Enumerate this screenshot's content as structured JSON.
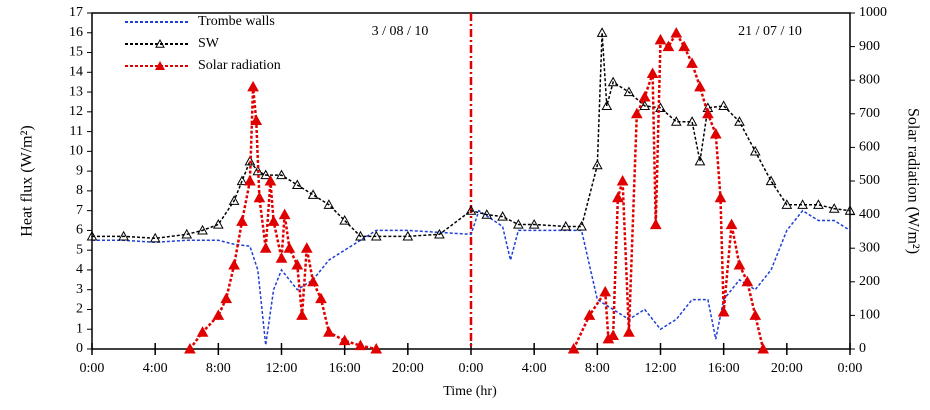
{
  "chart_data": {
    "type": "line",
    "xlabel": "Time (hr)",
    "ylabel": "Heat flux (W/m²)",
    "y2label": "Solar radiation (W/m²)",
    "annotations": [
      "3 / 08 / 10",
      "21 / 07 / 10"
    ],
    "vline": 24,
    "xlim": [
      0,
      48
    ],
    "xticks": [
      {
        "value": 0,
        "label": "0:00"
      },
      {
        "value": 4,
        "label": "4:00"
      },
      {
        "value": 8,
        "label": "8:00"
      },
      {
        "value": 12,
        "label": "12:00"
      },
      {
        "value": 16,
        "label": "16:00"
      },
      {
        "value": 20,
        "label": "20:00"
      },
      {
        "value": 24,
        "label": "0:00"
      },
      {
        "value": 28,
        "label": "4:00"
      },
      {
        "value": 32,
        "label": "8:00"
      },
      {
        "value": 36,
        "label": "12:00"
      },
      {
        "value": 40,
        "label": "16:00"
      },
      {
        "value": 44,
        "label": "20:00"
      },
      {
        "value": 48,
        "label": "0:00"
      }
    ],
    "ylim": [
      0,
      17
    ],
    "yticks": [
      0,
      1,
      2,
      3,
      4,
      5,
      6,
      7,
      8,
      9,
      10,
      11,
      12,
      13,
      14,
      15,
      16,
      17
    ],
    "y2lim": [
      0,
      1000
    ],
    "y2ticks": [
      0,
      100,
      200,
      300,
      400,
      500,
      600,
      700,
      800,
      900,
      1000
    ],
    "series": [
      {
        "name": "Trombe walls",
        "color": "#1f3fd6",
        "marker": "none",
        "axis": "y",
        "x": [
          0,
          2,
          4,
          6,
          8,
          9,
          10,
          10.5,
          11,
          11.5,
          12,
          13,
          14,
          15,
          16,
          17,
          18,
          20,
          24,
          24.5,
          26,
          26.5,
          27,
          28,
          30,
          31,
          32,
          33,
          34,
          35,
          36,
          37,
          38,
          39,
          39.5,
          40,
          41,
          42,
          43,
          44,
          45,
          46,
          47,
          48
        ],
        "values": [
          5.5,
          5.5,
          5.4,
          5.5,
          5.5,
          5.3,
          5.2,
          4,
          0.2,
          3,
          4,
          3,
          3.5,
          4.5,
          5,
          5.5,
          6,
          6,
          5.8,
          7,
          6.2,
          4.5,
          6,
          6,
          6,
          6,
          2.5,
          2,
          1.5,
          2,
          1,
          1.5,
          2.5,
          2.5,
          0.5,
          2.5,
          3.5,
          3,
          4,
          6,
          7,
          6.5,
          6.5,
          6
        ]
      },
      {
        "name": "SW",
        "color": "#000000",
        "marker": "open-triangle",
        "axis": "y",
        "x": [
          0,
          2,
          4,
          6,
          7,
          8,
          9,
          9.5,
          10,
          10.5,
          11,
          12,
          13,
          14,
          15,
          16,
          17,
          18,
          20,
          22,
          24,
          25,
          26,
          27,
          28,
          30,
          31,
          32,
          32.3,
          32.6,
          33,
          34,
          35,
          36,
          37,
          38,
          38.5,
          39,
          40,
          41,
          42,
          43,
          44,
          45,
          46,
          47,
          48
        ],
        "values": [
          5.7,
          5.7,
          5.6,
          5.8,
          6,
          6.3,
          7.5,
          8.5,
          9.5,
          9,
          8.8,
          8.8,
          8.3,
          7.8,
          7.3,
          6.5,
          5.7,
          5.7,
          5.7,
          5.8,
          7,
          6.8,
          6.7,
          6.3,
          6.3,
          6.2,
          6.2,
          9.3,
          16,
          12.3,
          13.5,
          13,
          12.3,
          12.2,
          11.5,
          11.5,
          9.5,
          12.2,
          12.3,
          11.5,
          10,
          8.5,
          7.3,
          7.3,
          7.3,
          7.1,
          7
        ]
      },
      {
        "name": "Solar radiation",
        "color": "#e00000",
        "marker": "filled-triangle",
        "axis": "y2",
        "x": [
          6.2,
          7,
          8,
          8.5,
          9,
          9.5,
          10,
          10.2,
          10.4,
          10.6,
          11,
          11.3,
          11.5,
          12,
          12.2,
          12.5,
          13,
          13.3,
          13.6,
          14,
          14.5,
          15,
          16,
          17,
          18,
          24,
          30.5,
          31.5,
          32.5,
          32.7,
          33,
          33.3,
          33.6,
          34,
          34.5,
          35,
          35.5,
          35.7,
          36,
          36.5,
          37,
          37.5,
          38,
          38.5,
          39,
          39.5,
          39.8,
          40,
          40.5,
          41,
          41.5,
          42,
          42.5
        ],
        "values": [
          0,
          50,
          100,
          150,
          250,
          380,
          500,
          780,
          680,
          450,
          300,
          500,
          380,
          270,
          400,
          300,
          250,
          100,
          300,
          200,
          150,
          50,
          25,
          10,
          0,
          null,
          0,
          100,
          170,
          30,
          40,
          450,
          500,
          50,
          700,
          750,
          820,
          370,
          920,
          900,
          940,
          900,
          850,
          780,
          700,
          640,
          450,
          110,
          370,
          250,
          200,
          100,
          0
        ]
      }
    ]
  }
}
